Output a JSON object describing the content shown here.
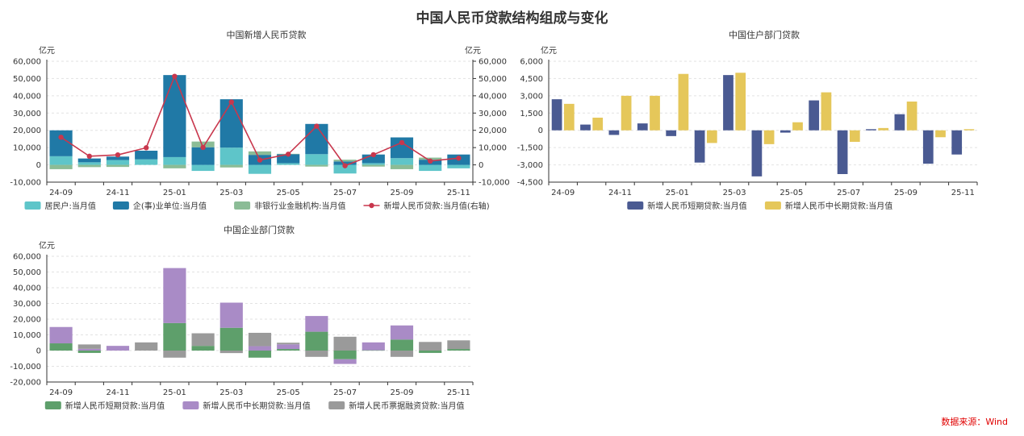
{
  "title": "中国人民币贷款结构组成与变化",
  "source": "数据来源：Wind",
  "colors": {
    "household": "#5ec5c9",
    "enterprise": "#2079a6",
    "nonbank": "#8bbc96",
    "total_line": "#c8374d",
    "short": "#4a5a92",
    "long": "#e5c75a",
    "ent_short": "#5e9f6b",
    "ent_long": "#a98bc6",
    "ent_bill": "#9a9a9a",
    "grid": "#e2e2e2",
    "axis": "#333333"
  },
  "chart_data": [
    {
      "id": "total",
      "type": "bar",
      "stacked": true,
      "title": "中国新增人民币贷款",
      "ylabel_left": "亿元",
      "ylabel_right": "亿元",
      "ylim": [
        -10000,
        60000
      ],
      "yticks": [
        -10000,
        0,
        10000,
        20000,
        30000,
        40000,
        50000,
        60000
      ],
      "ytick_labels": [
        "-10,000",
        "0",
        "10,000",
        "20,000",
        "30,000",
        "40,000",
        "50,000",
        "60,000"
      ],
      "ytick_labels_right": [
        "-10,000",
        "0",
        "10,000",
        "20,000",
        "30,000",
        "40,000",
        "50,000",
        "60,000"
      ],
      "categories": [
        "24-09",
        "24-10",
        "24-11",
        "24-12",
        "25-01",
        "25-02",
        "25-03",
        "25-04",
        "25-05",
        "25-06",
        "25-07",
        "25-08",
        "25-09",
        "25-10",
        "25-11"
      ],
      "xtick_labels": [
        "24-09",
        "24-11",
        "25-01",
        "25-03",
        "25-05",
        "25-07",
        "25-09",
        "25-11"
      ],
      "series": [
        {
          "name": "居民户:当月值",
          "color_key": "household",
          "kind": "bar",
          "values": [
            5000,
            1500,
            2800,
            3200,
            4500,
            -3500,
            10000,
            -5200,
            1000,
            6200,
            -5000,
            1000,
            3900,
            -3500,
            -2000
          ]
        },
        {
          "name": "企(事)业单位:当月值",
          "color_key": "enterprise",
          "kind": "bar",
          "values": [
            15000,
            2200,
            2000,
            5000,
            47500,
            10200,
            28000,
            5800,
            5200,
            17500,
            2000,
            5000,
            12000,
            3000,
            6000
          ]
        },
        {
          "name": "非银行业金融机构:当月值",
          "color_key": "nonbank",
          "kind": "bar",
          "values": [
            -2500,
            -1300,
            -1200,
            0,
            -2000,
            3300,
            -1500,
            2000,
            200,
            -1000,
            1000,
            -1000,
            -2500,
            1200,
            0
          ]
        },
        {
          "name": "新增人民币贷款:当月值(右轴)",
          "color_key": "total_line",
          "kind": "line",
          "values": [
            16000,
            5000,
            5800,
            9900,
            51300,
            10100,
            36400,
            2800,
            6200,
            22400,
            -500,
            5900,
            12900,
            2200,
            3900
          ]
        }
      ]
    },
    {
      "id": "household",
      "type": "bar",
      "stacked": false,
      "title": "中国住户部门贷款",
      "ylabel": "亿元",
      "ylim": [
        -4500,
        6000
      ],
      "yticks": [
        -4500,
        -3000,
        -1500,
        0,
        1500,
        3000,
        4500,
        6000
      ],
      "ytick_labels": [
        "-4,500",
        "-3,000",
        "-1,500",
        "0",
        "1,500",
        "3,000",
        "4,500",
        "6,000"
      ],
      "categories": [
        "24-09",
        "24-10",
        "24-11",
        "24-12",
        "25-01",
        "25-02",
        "25-03",
        "25-04",
        "25-05",
        "25-06",
        "25-07",
        "25-08",
        "25-09",
        "25-10",
        "25-11"
      ],
      "xtick_labels": [
        "24-09",
        "24-11",
        "25-01",
        "25-03",
        "25-05",
        "25-07",
        "25-09",
        "25-11"
      ],
      "series": [
        {
          "name": "新增人民币短期贷款:当月值",
          "color_key": "short",
          "values": [
            2700,
            500,
            -400,
            600,
            -500,
            -2800,
            4800,
            -4000,
            -200,
            2600,
            -3800,
            100,
            1400,
            -2900,
            -2100
          ]
        },
        {
          "name": "新增人民币中长期贷款:当月值",
          "color_key": "long",
          "values": [
            2300,
            1100,
            3000,
            3000,
            4900,
            -1100,
            5000,
            -1200,
            700,
            3300,
            -1000,
            200,
            2500,
            -600,
            100
          ]
        }
      ]
    },
    {
      "id": "enterprise",
      "type": "bar",
      "stacked": true,
      "title": "中国企业部门贷款",
      "ylabel": "亿元",
      "ylim": [
        -20000,
        60000
      ],
      "yticks": [
        -20000,
        -10000,
        0,
        10000,
        20000,
        30000,
        40000,
        50000,
        60000
      ],
      "ytick_labels": [
        "-20,000",
        "-10,000",
        "0",
        "10,000",
        "20,000",
        "30,000",
        "40,000",
        "50,000",
        "60,000"
      ],
      "categories": [
        "24-09",
        "24-10",
        "24-11",
        "24-12",
        "25-01",
        "25-02",
        "25-03",
        "25-04",
        "25-05",
        "25-06",
        "25-07",
        "25-08",
        "25-09",
        "25-10",
        "25-11"
      ],
      "xtick_labels": [
        "24-09",
        "24-11",
        "25-01",
        "25-03",
        "25-05",
        "25-07",
        "25-09",
        "25-11"
      ],
      "series": [
        {
          "name": "新增人民币短期贷款:当月值",
          "color_key": "ent_short",
          "values": [
            4600,
            -1500,
            0,
            0,
            17500,
            3000,
            14500,
            -4500,
            1000,
            12000,
            -5500,
            200,
            7000,
            -1500,
            1000
          ]
        },
        {
          "name": "新增人民币中长期贷款:当月值",
          "color_key": "ent_long",
          "values": [
            10400,
            1100,
            3000,
            0,
            35000,
            0,
            16000,
            2800,
            3000,
            10000,
            -3000,
            5000,
            9000,
            0,
            0
          ]
        },
        {
          "name": "新增人民币票据融资贷款:当月值",
          "color_key": "ent_bill",
          "values": [
            0,
            2800,
            0,
            5200,
            -4500,
            8000,
            -1600,
            8500,
            1000,
            -4000,
            8800,
            0,
            -4000,
            5500,
            5500
          ]
        }
      ]
    }
  ]
}
